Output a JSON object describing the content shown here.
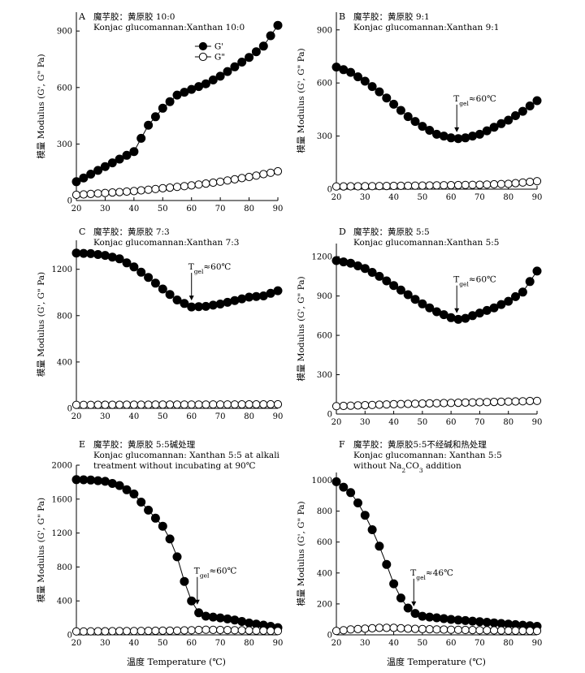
{
  "figure": {
    "xlabel": "温度 Temperature (℃)"
  },
  "chart_data": [
    {
      "type": "scatter",
      "panel": "A",
      "title": [
        "魔芋胶：黄原胶 10:0",
        "Konjac glucomannan:Xanthan 10:0"
      ],
      "xlabel": "",
      "ylabel": "模量 Modulus (G', G\" Pa)",
      "xlim": [
        20,
        90
      ],
      "ylim": [
        0,
        1000
      ],
      "xticks": [
        20,
        30,
        40,
        50,
        60,
        70,
        80,
        90
      ],
      "yticks": [
        0,
        300,
        600,
        900
      ],
      "legend": {
        "position": "top-right",
        "entries": [
          "G'",
          "G\""
        ]
      },
      "series": [
        {
          "name": "G'",
          "marker": "filled",
          "line": true,
          "points": [
            [
              20,
              100
            ],
            [
              40,
              260
            ],
            [
              45,
              400
            ],
            [
              50,
              490
            ],
            [
              55,
              560
            ],
            [
              60,
              590
            ],
            [
              65,
              620
            ],
            [
              70,
              660
            ],
            [
              75,
              710
            ],
            [
              80,
              760
            ],
            [
              85,
              820
            ],
            [
              90,
              930
            ]
          ]
        },
        {
          "name": "G\"",
          "marker": "open",
          "line": true,
          "points": [
            [
              20,
              30
            ],
            [
              30,
              40
            ],
            [
              40,
              50
            ],
            [
              50,
              65
            ],
            [
              60,
              80
            ],
            [
              70,
              100
            ],
            [
              80,
              125
            ],
            [
              90,
              155
            ]
          ]
        }
      ]
    },
    {
      "type": "scatter",
      "panel": "B",
      "title": [
        "魔芋胶：黄原胶 9:1",
        "Konjac glucomannan:Xanthan 9:1"
      ],
      "xlabel": "",
      "ylabel": "模量 Modulus (G', G\" Pa)",
      "xlim": [
        20,
        90
      ],
      "ylim": [
        0,
        1000
      ],
      "xticks": [
        20,
        30,
        40,
        50,
        60,
        70,
        80,
        90
      ],
      "yticks": [
        0,
        300,
        600,
        900
      ],
      "annotation": {
        "text": "Tgel≈60℃",
        "main": "T",
        "sub": "gel",
        "rest": "≈60℃",
        "x": 62,
        "y": 285,
        "series": 0
      },
      "series": [
        {
          "name": "G'",
          "marker": "filled",
          "line": true,
          "points": [
            [
              20,
              690
            ],
            [
              25,
              660
            ],
            [
              30,
              610
            ],
            [
              35,
              550
            ],
            [
              40,
              480
            ],
            [
              45,
              410
            ],
            [
              50,
              355
            ],
            [
              55,
              310
            ],
            [
              60,
              290
            ],
            [
              62,
              285
            ],
            [
              65,
              290
            ],
            [
              70,
              310
            ],
            [
              75,
              350
            ],
            [
              80,
              390
            ],
            [
              85,
              440
            ],
            [
              90,
              500
            ]
          ]
        },
        {
          "name": "G\"",
          "marker": "open",
          "line": true,
          "points": [
            [
              20,
              15
            ],
            [
              50,
              20
            ],
            [
              70,
              25
            ],
            [
              80,
              30
            ],
            [
              90,
              45
            ]
          ]
        }
      ]
    },
    {
      "type": "scatter",
      "panel": "C",
      "title": [
        "魔芋胶：黄原胶 7:3",
        "Konjac glucomannan:Xanthan 7:3"
      ],
      "xlabel": "",
      "ylabel": "模量 Modulus (G', G\" Pa)",
      "xlim": [
        20,
        90
      ],
      "ylim": [
        0,
        1450
      ],
      "xticks": [
        20,
        30,
        40,
        50,
        60,
        70,
        80,
        90
      ],
      "yticks": [
        0,
        400,
        800,
        1200
      ],
      "annotation": {
        "text": "Tgel≈60℃",
        "main": "T",
        "sub": "gel",
        "rest": "≈60℃",
        "x": 60,
        "y": 875,
        "series": 0
      },
      "series": [
        {
          "name": "G'",
          "marker": "filled",
          "line": true,
          "points": [
            [
              20,
              1340
            ],
            [
              25,
              1335
            ],
            [
              30,
              1320
            ],
            [
              35,
              1290
            ],
            [
              40,
              1220
            ],
            [
              45,
              1130
            ],
            [
              50,
              1030
            ],
            [
              55,
              935
            ],
            [
              60,
              875
            ],
            [
              65,
              880
            ],
            [
              70,
              900
            ],
            [
              75,
              930
            ],
            [
              80,
              960
            ],
            [
              85,
              970
            ],
            [
              90,
              1015
            ]
          ]
        },
        {
          "name": "G\"",
          "marker": "open",
          "line": true,
          "points": [
            [
              20,
              30
            ],
            [
              90,
              35
            ]
          ]
        }
      ]
    },
    {
      "type": "scatter",
      "panel": "D",
      "title": [
        "魔芋胶：黄原胶 5:5",
        "Konjac glucomannan:Xanthan 5:5"
      ],
      "xlabel": "",
      "ylabel": "模量 Modulus (G', G\" Pa)",
      "xlim": [
        20,
        90
      ],
      "ylim": [
        0,
        1300
      ],
      "xticks": [
        20,
        30,
        40,
        50,
        60,
        70,
        80,
        90
      ],
      "yticks": [
        0,
        300,
        600,
        900,
        1200
      ],
      "annotation": {
        "text": "Tgel≈60℃",
        "main": "T",
        "sub": "gel",
        "rest": "≈60℃",
        "x": 62,
        "y": 720,
        "series": 0
      },
      "series": [
        {
          "name": "G'",
          "marker": "filled",
          "line": true,
          "points": [
            [
              20,
              1170
            ],
            [
              25,
              1150
            ],
            [
              30,
              1110
            ],
            [
              35,
              1050
            ],
            [
              40,
              980
            ],
            [
              45,
              910
            ],
            [
              50,
              840
            ],
            [
              55,
              780
            ],
            [
              60,
              735
            ],
            [
              62,
              720
            ],
            [
              65,
              730
            ],
            [
              70,
              770
            ],
            [
              75,
              810
            ],
            [
              80,
              860
            ],
            [
              85,
              930
            ],
            [
              90,
              1090
            ]
          ]
        },
        {
          "name": "G\"",
          "marker": "open",
          "line": true,
          "points": [
            [
              20,
              60
            ],
            [
              40,
              75
            ],
            [
              60,
              85
            ],
            [
              80,
              95
            ],
            [
              90,
              100
            ]
          ]
        }
      ]
    },
    {
      "type": "scatter",
      "panel": "E",
      "title": [
        "魔芋胶：黄原胶 5:5碱处理",
        "Konjac glucomannan: Xanthan 5:5 at alkali",
        "treatment without incubating at 90℃"
      ],
      "xlabel": "",
      "ylabel": "模量 Modulus (G', G\" Pa)",
      "xlim": [
        20,
        90
      ],
      "ylim": [
        0,
        2000
      ],
      "xticks": [
        20,
        30,
        40,
        50,
        60,
        70,
        80,
        90
      ],
      "yticks": [
        0,
        400,
        800,
        1200,
        1600,
        2000
      ],
      "annotation": {
        "text": "Tgel≈60℃",
        "main": "T",
        "sub": "gel",
        "rest": "≈60℃",
        "x": 62,
        "y": 230,
        "series": 0
      },
      "series": [
        {
          "name": "G'",
          "marker": "filled",
          "line": true,
          "points": [
            [
              20,
              1830
            ],
            [
              25,
              1825
            ],
            [
              30,
              1810
            ],
            [
              35,
              1760
            ],
            [
              40,
              1660
            ],
            [
              45,
              1470
            ],
            [
              50,
              1280
            ],
            [
              53,
              1100
            ],
            [
              55,
              920
            ],
            [
              57,
              680
            ],
            [
              59,
              480
            ],
            [
              61,
              320
            ],
            [
              63,
              240
            ],
            [
              65,
              220
            ],
            [
              70,
              200
            ],
            [
              75,
              175
            ],
            [
              80,
              140
            ],
            [
              85,
              115
            ],
            [
              90,
              85
            ]
          ]
        },
        {
          "name": "G\"",
          "marker": "open",
          "line": true,
          "points": [
            [
              20,
              40
            ],
            [
              40,
              45
            ],
            [
              55,
              50
            ],
            [
              65,
              60
            ],
            [
              75,
              55
            ],
            [
              90,
              45
            ]
          ]
        }
      ]
    },
    {
      "type": "scatter",
      "panel": "F",
      "title": [
        "魔芋胶：黄原胶5:5不经碱和热处理",
        "Konjac glucomannan: Xanthan 5:5",
        "without Na2CO3 addition"
      ],
      "xlabel": "",
      "ylabel": "模量 Modulus (G', G\" Pa)",
      "xlim": [
        20,
        90
      ],
      "ylim": [
        0,
        1050
      ],
      "xticks": [
        20,
        30,
        40,
        50,
        60,
        70,
        80,
        90
      ],
      "yticks": [
        0,
        200,
        400,
        600,
        800,
        1000
      ],
      "annotation": {
        "text": "Tgel≈46℃",
        "main": "T",
        "sub": "gel",
        "rest": "≈46℃",
        "x": 47,
        "y": 130,
        "series": 0
      },
      "series": [
        {
          "name": "G'",
          "marker": "filled",
          "line": true,
          "points": [
            [
              20,
              990
            ],
            [
              25,
              920
            ],
            [
              28,
              840
            ],
            [
              31,
              740
            ],
            [
              34,
              620
            ],
            [
              37,
              480
            ],
            [
              40,
              330
            ],
            [
              43,
              220
            ],
            [
              46,
              150
            ],
            [
              50,
              120
            ],
            [
              60,
              100
            ],
            [
              70,
              85
            ],
            [
              80,
              70
            ],
            [
              90,
              55
            ]
          ]
        },
        {
          "name": "G\"",
          "marker": "open",
          "line": true,
          "points": [
            [
              20,
              25
            ],
            [
              25,
              35
            ],
            [
              30,
              40
            ],
            [
              35,
              45
            ],
            [
              40,
              45
            ],
            [
              45,
              40
            ],
            [
              55,
              35
            ],
            [
              70,
              30
            ],
            [
              90,
              25
            ]
          ]
        }
      ]
    }
  ]
}
